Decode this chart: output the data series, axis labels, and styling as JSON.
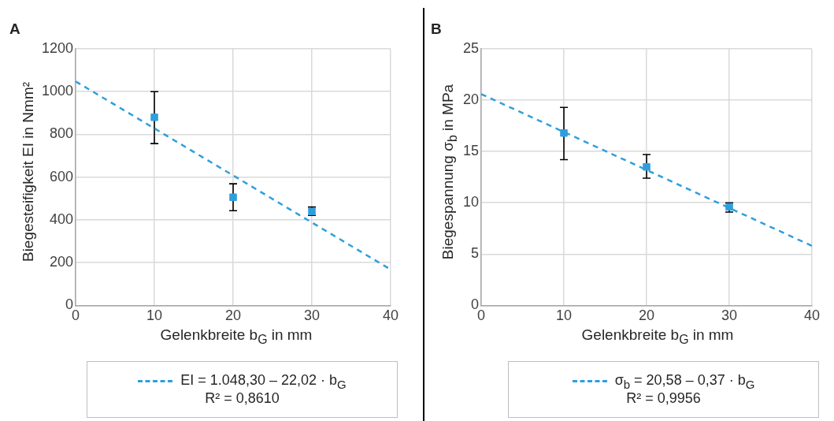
{
  "chart_data": [
    {
      "type": "scatter",
      "title": "A",
      "xlabel": "Gelenkbreite b$_{G}$ in mm",
      "ylabel": "Biegesteifigkeit EI in Nmm²",
      "xlim": [
        0,
        40
      ],
      "xticks": [
        0,
        10,
        20,
        30,
        40
      ],
      "ylim": [
        0,
        1200
      ],
      "yticks": [
        0,
        200,
        400,
        600,
        800,
        1000,
        1200
      ],
      "grid": true,
      "legend": "bottom",
      "annotations": [
        "R² = 0,8610"
      ],
      "series": [
        {
          "color": "#2f9fdc",
          "marker": "square",
          "x": [
            10,
            20,
            30
          ],
          "values": [
            880,
            506,
            439
          ],
          "errors": [
            [
              757,
              1000
            ],
            [
              443,
              569
            ],
            [
              421,
              460
            ]
          ]
        },
        {
          "type": "line",
          "name": "EI = 1.048,30 – 22,02 · b$_{G}$",
          "color": "#2f9fdc",
          "x": [
            0,
            40
          ],
          "values": [
            1048,
            168
          ],
          "line_style": "dashed",
          "marker": "none"
        }
      ]
    },
    {
      "type": "scatter",
      "title": "B",
      "xlabel": "Gelenkbreite b$_{G}$ in mm",
      "ylabel": "Biegespannung σ$_{b}$ in MPa",
      "xlim": [
        0,
        40
      ],
      "xticks": [
        0,
        10,
        20,
        30,
        40
      ],
      "ylim": [
        0,
        25
      ],
      "yticks": [
        0,
        5,
        10,
        15,
        20,
        25
      ],
      "grid": true,
      "legend": "bottom",
      "annotations": [
        "R² = 0,9956"
      ],
      "series": [
        {
          "color": "#2f9fdc",
          "marker": "square",
          "x": [
            10,
            20,
            30
          ],
          "values": [
            16.8,
            13.5,
            9.6
          ],
          "errors": [
            [
              14.2,
              19.3
            ],
            [
              12.4,
              14.7
            ],
            [
              9.1,
              10.0
            ]
          ]
        },
        {
          "type": "line",
          "name": "σ$_{b}$ = 20,58 – 0,37 · b$_{G}$",
          "color": "#2f9fdc",
          "x": [
            0,
            40
          ],
          "values": [
            20.6,
            5.8
          ],
          "line_style": "dashed",
          "marker": "none"
        }
      ]
    }
  ]
}
